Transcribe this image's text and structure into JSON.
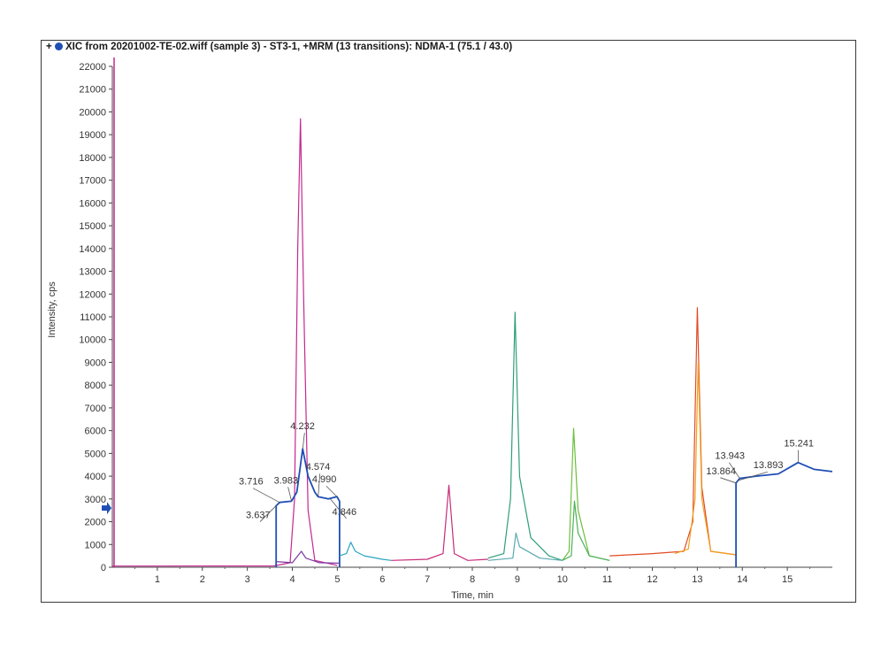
{
  "title": "XIC from 20201002-TE-02.wiff (sample 3) - ST3-1, +MRM (13 transitions): NDMA-1 (75.1 / 43.0)",
  "title_icons": [
    "plus-icon",
    "blue-dot-icon"
  ],
  "chart_data": {
    "type": "line",
    "xlabel": "Time, min",
    "ylabel": "Intensity, cps",
    "xlim": [
      0,
      16
    ],
    "ylim": [
      0,
      22000
    ],
    "xticks": [
      1,
      2,
      3,
      4,
      5,
      6,
      7,
      8,
      9,
      10,
      11,
      12,
      13,
      14,
      15
    ],
    "yticks": [
      0,
      1000,
      2000,
      3000,
      4000,
      5000,
      6000,
      7000,
      8000,
      9000,
      10000,
      11000,
      12000,
      13000,
      14000,
      15000,
      16000,
      17000,
      18000,
      19000,
      20000,
      21000,
      22000
    ],
    "grid": false,
    "threshold_marker": 2600,
    "series": [
      {
        "color": "#c4288e",
        "x": [
          0.0,
          3.6,
          3.95,
          4.05,
          4.12,
          4.18,
          4.25,
          4.35,
          4.5,
          5.0
        ],
        "y": [
          50,
          60,
          200,
          3000,
          14000,
          19700,
          12000,
          2500,
          300,
          80
        ]
      },
      {
        "color": "#1f4fb5",
        "x": [
          3.64,
          3.64,
          3.72,
          3.98,
          4.1,
          4.23,
          4.35,
          4.5,
          4.57,
          4.8,
          4.99,
          5.05,
          5.05
        ],
        "y": [
          0,
          2700,
          2850,
          2900,
          3300,
          5200,
          4000,
          3300,
          3100,
          3000,
          3100,
          2900,
          0
        ]
      },
      {
        "color": "#7a3aa0",
        "x": [
          3.64,
          4.0,
          4.2,
          4.3,
          4.6,
          5.05
        ],
        "y": [
          250,
          200,
          700,
          400,
          200,
          180
        ]
      },
      {
        "color": "#2aa3c2",
        "x": [
          5.05,
          5.2,
          5.3,
          5.4,
          5.6,
          6.0,
          6.2
        ],
        "y": [
          500,
          600,
          1100,
          700,
          500,
          350,
          300
        ]
      },
      {
        "color": "#c82c7a",
        "x": [
          6.2,
          7.0,
          7.35,
          7.48,
          7.6,
          7.9,
          8.35
        ],
        "y": [
          300,
          350,
          600,
          3600,
          600,
          300,
          350
        ]
      },
      {
        "color": "#2f9e7a",
        "x": [
          8.35,
          8.7,
          8.85,
          8.95,
          9.05,
          9.3,
          9.7,
          10.0
        ],
        "y": [
          400,
          600,
          3000,
          11200,
          4000,
          1300,
          500,
          300
        ]
      },
      {
        "color": "#5aa9b0",
        "x": [
          8.35,
          8.9,
          8.97,
          9.05,
          9.5,
          10.0
        ],
        "y": [
          300,
          400,
          1500,
          900,
          400,
          300
        ]
      },
      {
        "color": "#6cbf3c",
        "x": [
          10.0,
          10.15,
          10.25,
          10.35,
          10.6,
          11.05
        ],
        "y": [
          300,
          700,
          6100,
          2500,
          500,
          300
        ]
      },
      {
        "color": "#4caf5a",
        "x": [
          10.0,
          10.2,
          10.27,
          10.35,
          10.6,
          11.05
        ],
        "y": [
          300,
          500,
          2900,
          1500,
          500,
          300
        ]
      },
      {
        "color": "#e04a22",
        "x": [
          11.05,
          12.0,
          12.7,
          12.9,
          13.0,
          13.1,
          13.3,
          13.85
        ],
        "y": [
          500,
          600,
          700,
          2000,
          11400,
          3500,
          700,
          550
        ]
      },
      {
        "color": "#f0a020",
        "x": [
          12.5,
          12.8,
          12.95,
          13.02,
          13.1,
          13.3,
          13.85
        ],
        "y": [
          600,
          800,
          3000,
          9000,
          3000,
          700,
          550
        ]
      },
      {
        "color": "#1f4fb5",
        "x": [
          13.86,
          13.86,
          13.94,
          14.3,
          14.8,
          15.24,
          15.6,
          16.0
        ],
        "y": [
          0,
          3700,
          3900,
          4000,
          4100,
          4600,
          4300,
          4200
        ]
      }
    ],
    "annotations": [
      {
        "label": "3.716",
        "x": 3.716,
        "y": 2850
      },
      {
        "label": "3.983",
        "x": 3.983,
        "y": 2900
      },
      {
        "label": "3.637",
        "x": 3.637,
        "y": 2700
      },
      {
        "label": "4.232",
        "x": 4.232,
        "y": 5200
      },
      {
        "label": "4.574",
        "x": 4.574,
        "y": 3100
      },
      {
        "label": "4.990",
        "x": 4.99,
        "y": 3100
      },
      {
        "label": "4.846",
        "x": 4.846,
        "y": 3000
      },
      {
        "label": "13.943",
        "x": 13.943,
        "y": 3900
      },
      {
        "label": "13.864",
        "x": 13.864,
        "y": 3700
      },
      {
        "label": "13.893",
        "x": 13.893,
        "y": 3800
      },
      {
        "label": "15.241",
        "x": 15.241,
        "y": 4600
      }
    ]
  }
}
